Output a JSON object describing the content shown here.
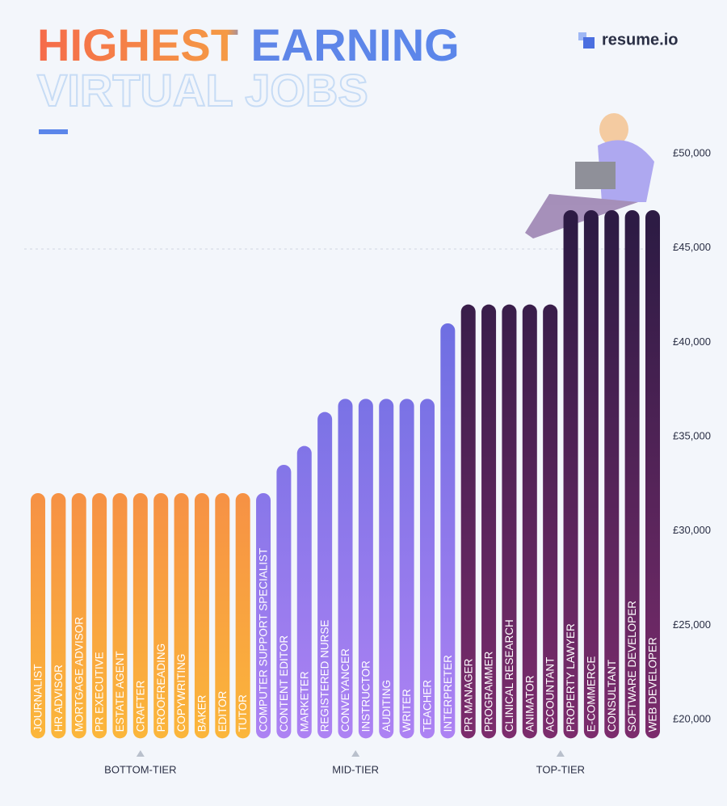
{
  "chart_data": {
    "type": "bar",
    "title": "HIGHEST EARNING",
    "subtitle": "VIRTUAL JOBS",
    "brand": "resume.io",
    "ylim": [
      19000,
      51000
    ],
    "yticks": [
      {
        "value": 20000,
        "label": "£20,000"
      },
      {
        "value": 25000,
        "label": "£25,000"
      },
      {
        "value": 30000,
        "label": "£30,000"
      },
      {
        "value": 35000,
        "label": "£35,000"
      },
      {
        "value": 40000,
        "label": "£40,000"
      },
      {
        "value": 45000,
        "label": "£45,000"
      },
      {
        "value": 50000,
        "label": "£50,000"
      }
    ],
    "groups": [
      {
        "name": "BOTTOM-TIER",
        "colors": [
          "#f1694f",
          "#fbb63b"
        ],
        "categories": [
          "JOURNALIST",
          "HR ADVISOR",
          "MORTGAGE ADVISOR",
          "PR EXECUTIVE",
          "ESTATE AGENT",
          "CRAFTER",
          "PROOFREADING",
          "COPYWRITING",
          "BAKER",
          "EDITOR",
          "TUTOR"
        ],
        "values": [
          32000,
          32000,
          32000,
          32000,
          32000,
          32000,
          32000,
          32000,
          32000,
          32000,
          32000
        ]
      },
      {
        "name": "MID-TIER",
        "colors": [
          "#5f6ade",
          "#ad82f3"
        ],
        "categories": [
          "COMPUTER SUPPORT SPECIALIST",
          "CONTENT EDITOR",
          "MARKETER",
          "REGISTERED NURSE",
          "CONVEYANCER",
          "INSTRUCTOR",
          "AUDITING",
          "WRITER",
          "TEACHER",
          "INTERPRETER"
        ],
        "values": [
          32000,
          33500,
          34500,
          36300,
          37000,
          37000,
          37000,
          37000,
          37000,
          41000
        ]
      },
      {
        "name": "TOP-TIER",
        "colors": [
          "#2d1b44",
          "#7c2c6d"
        ],
        "categories": [
          "PR MANAGER",
          "PROGRAMMER",
          "CLINICAL RESEARCH",
          "ANIMATOR",
          "ACCOUNTANT",
          "PROPERTY LAWYER",
          "E-COMMERCE",
          "CONSULTANT",
          "SOFTWARE DEVELOPER",
          "WEB DEVELOPER"
        ],
        "values": [
          42000,
          42000,
          42000,
          42000,
          42000,
          47000,
          47000,
          47000,
          47000,
          47000
        ]
      }
    ]
  }
}
